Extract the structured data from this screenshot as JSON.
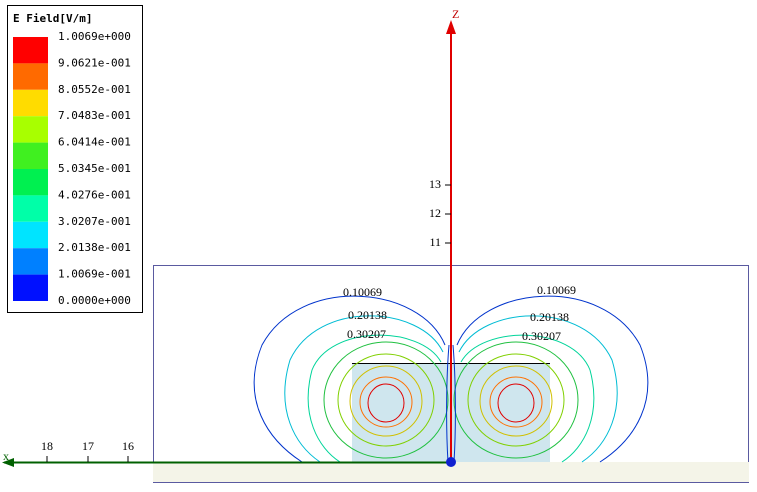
{
  "legend": {
    "title": "E Field[V/m]",
    "labels": [
      "1.0069e+000",
      "9.0621e-001",
      "8.0552e-001",
      "7.0483e-001",
      "6.0414e-001",
      "5.0345e-001",
      "4.0276e-001",
      "3.0207e-001",
      "2.0138e-001",
      "1.0069e-001",
      "0.0000e+000"
    ],
    "colors": [
      "#ff0000",
      "#ff6a00",
      "#ffdc00",
      "#a8ff00",
      "#40f020",
      "#00f050",
      "#00ffa8",
      "#00e4ff",
      "#0080ff",
      "#0010ff"
    ]
  },
  "axes": {
    "z_label": "Z",
    "x_label": "x",
    "z_ticks": [
      "13",
      "12",
      "11"
    ],
    "x_ticks": [
      "18",
      "17",
      "16"
    ]
  },
  "contour_labels": [
    "0.10069",
    "0.10069",
    "0.20138",
    "0.20138",
    "0.30207",
    "0.30207"
  ]
}
